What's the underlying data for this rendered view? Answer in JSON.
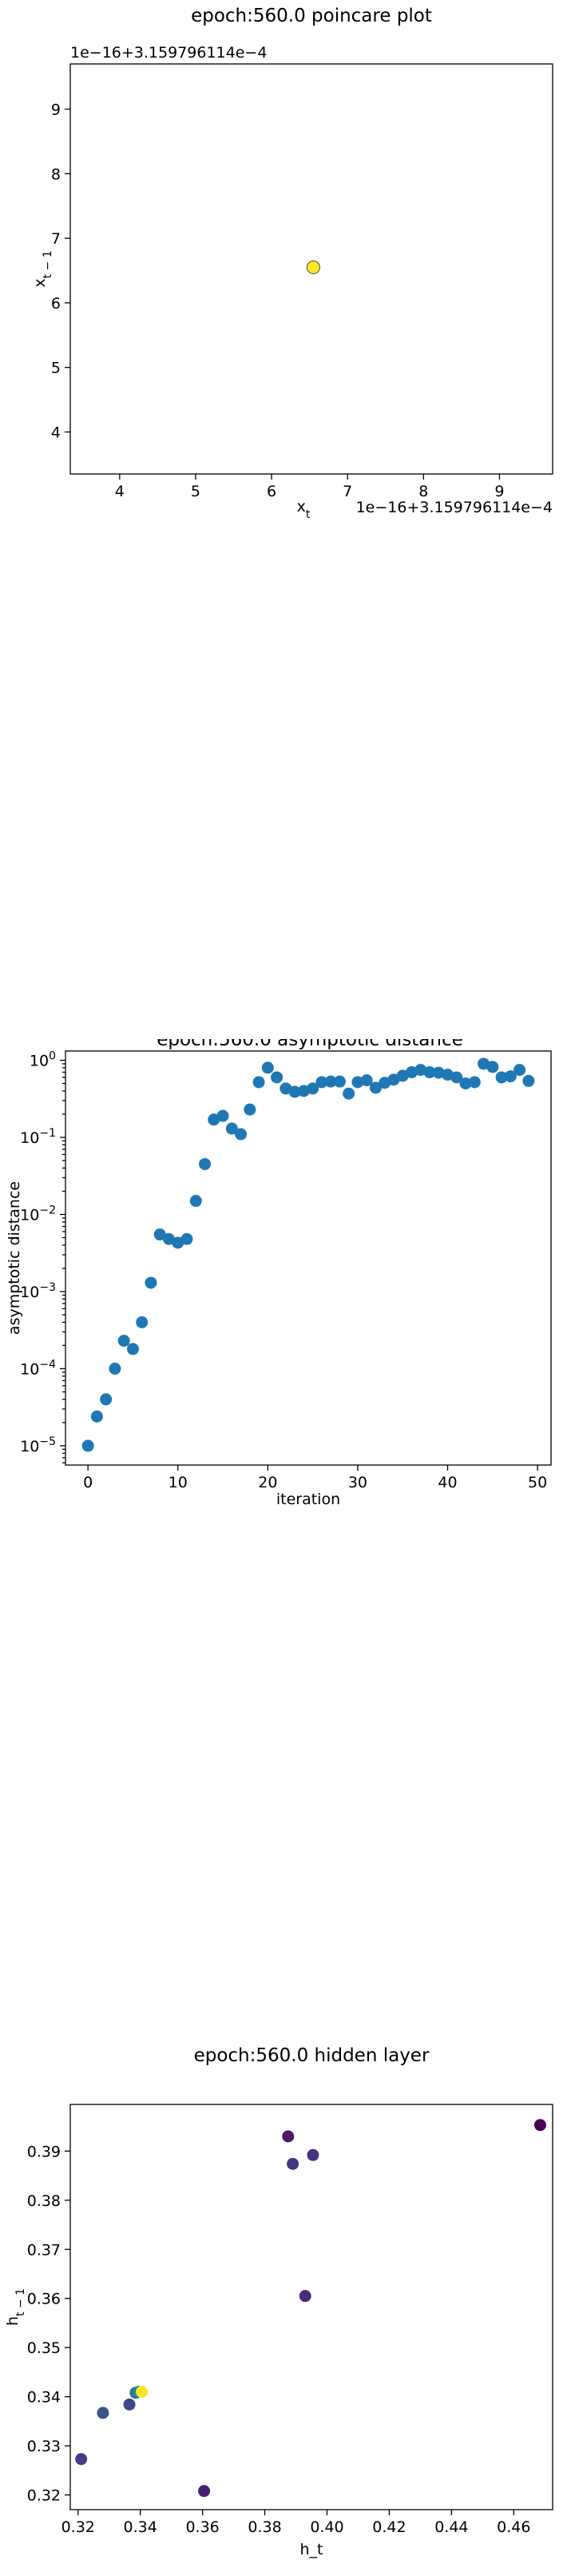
{
  "colors": {
    "poincare_marker": "#fde725",
    "poincare_marker_back": "#440154",
    "asymptotic_marker": "#1f77b4"
  },
  "chart_data": [
    {
      "type": "scatter",
      "title": "epoch:560.0 poincare plot",
      "xlabel_base": "x",
      "xlabel_sub": "t",
      "ylabel_base": "x",
      "ylabel_sub": "t − 1",
      "x_offset_text": "1e−16+3.159796114e−4",
      "y_offset_text": "1e−16+3.159796114e−4",
      "xlim": [
        3.35,
        9.7
      ],
      "ylim": [
        3.35,
        9.7
      ],
      "xticks": [
        4,
        5,
        6,
        7,
        8,
        9
      ],
      "yticks": [
        4,
        5,
        6,
        7,
        8,
        9
      ],
      "points": [
        {
          "x": 6.55,
          "y": 6.55,
          "color": "#440154"
        },
        {
          "x": 6.55,
          "y": 6.55,
          "color": "#fde725"
        }
      ]
    },
    {
      "type": "scatter",
      "title": "epoch:560.0 asymptotic distance",
      "xlabel": "iteration",
      "ylabel": "asymptotic distance",
      "yscale": "log",
      "xlim": [
        -2.5,
        51.5
      ],
      "ylim_exp": [
        -5.25,
        0.12
      ],
      "xticks": [
        0,
        10,
        20,
        30,
        40,
        50
      ],
      "yticks": [
        {
          "base": "10",
          "exp": "−5",
          "value": -5
        },
        {
          "base": "10",
          "exp": "−4",
          "value": -4
        },
        {
          "base": "10",
          "exp": "−3",
          "value": -3
        },
        {
          "base": "10",
          "exp": "−2",
          "value": -2
        },
        {
          "base": "10",
          "exp": "−1",
          "value": -1
        },
        {
          "base": "10",
          "exp": "0",
          "value": 0
        }
      ],
      "x": [
        0,
        1,
        2,
        3,
        4,
        5,
        6,
        7,
        8,
        9,
        10,
        11,
        12,
        13,
        14,
        15,
        16,
        17,
        18,
        19,
        20,
        21,
        22,
        23,
        24,
        25,
        26,
        27,
        28,
        29,
        30,
        31,
        32,
        33,
        34,
        35,
        36,
        37,
        38,
        39,
        40,
        41,
        42,
        43,
        44,
        45,
        46,
        47,
        48,
        49
      ],
      "y": [
        1e-05,
        2.4e-05,
        4e-05,
        0.0001,
        0.00023,
        0.00018,
        0.0004,
        0.0013,
        0.0055,
        0.0048,
        0.0043,
        0.0048,
        0.015,
        0.045,
        0.17,
        0.19,
        0.13,
        0.11,
        0.23,
        0.52,
        0.8,
        0.6,
        0.43,
        0.39,
        0.4,
        0.43,
        0.52,
        0.53,
        0.53,
        0.37,
        0.52,
        0.55,
        0.44,
        0.51,
        0.56,
        0.63,
        0.7,
        0.75,
        0.7,
        0.69,
        0.65,
        0.6,
        0.5,
        0.52,
        0.9,
        0.82,
        0.6,
        0.62,
        0.75,
        0.54
      ]
    },
    {
      "type": "scatter",
      "title": "epoch:560.0 hidden layer",
      "xlabel": "h_t",
      "ylabel_base": "h",
      "ylabel_sub": "t − 1",
      "xlim": [
        0.3175,
        0.4725
      ],
      "ylim": [
        0.317,
        0.3995
      ],
      "xticks": [
        0.32,
        0.34,
        0.36,
        0.38,
        0.4,
        0.42,
        0.44,
        0.46
      ],
      "yticks": [
        0.32,
        0.33,
        0.34,
        0.35,
        0.36,
        0.37,
        0.38,
        0.39
      ],
      "points": [
        {
          "x": 0.4685,
          "y": 0.3953,
          "color": "#440154"
        },
        {
          "x": 0.3875,
          "y": 0.393,
          "color": "#481a6c"
        },
        {
          "x": 0.3955,
          "y": 0.3892,
          "color": "#46327e"
        },
        {
          "x": 0.389,
          "y": 0.3874,
          "color": "#443983"
        },
        {
          "x": 0.393,
          "y": 0.3605,
          "color": "#472c7a"
        },
        {
          "x": 0.3605,
          "y": 0.3208,
          "color": "#481f70"
        },
        {
          "x": 0.321,
          "y": 0.3273,
          "color": "#433e85"
        },
        {
          "x": 0.328,
          "y": 0.3367,
          "color": "#3b528b"
        },
        {
          "x": 0.3365,
          "y": 0.3384,
          "color": "#404688"
        },
        {
          "x": 0.3385,
          "y": 0.3408,
          "color": "#2c728e"
        },
        {
          "x": 0.3395,
          "y": 0.341,
          "color": "#21918c"
        },
        {
          "x": 0.3405,
          "y": 0.341,
          "color": "#fde725"
        }
      ]
    }
  ]
}
